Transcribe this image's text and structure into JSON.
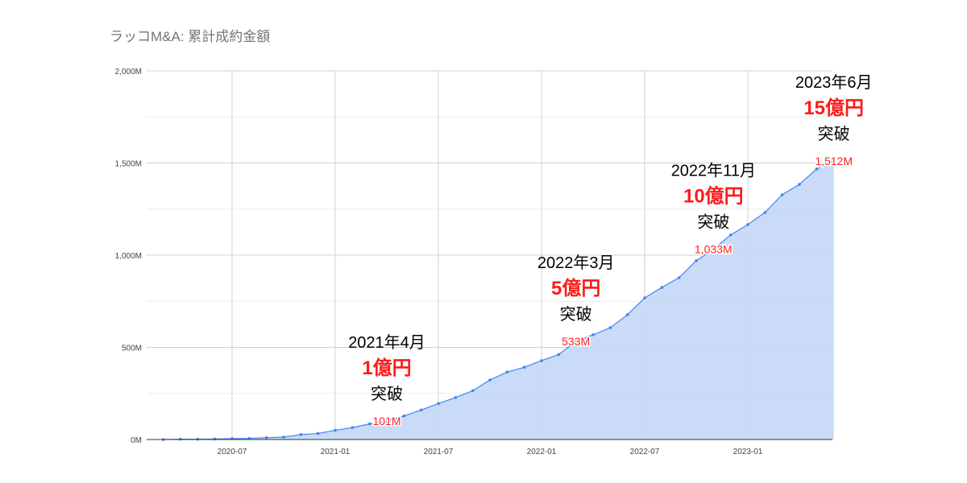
{
  "chart_data": {
    "type": "area",
    "title": "ラッコM&A: 累計成約金額",
    "xlabel": "",
    "ylabel": "",
    "ylim": [
      0,
      2000
    ],
    "y_unit": "M",
    "y_ticks": [
      "0M",
      "500M",
      "1,000M",
      "1,500M",
      "2,000M"
    ],
    "y_tick_values": [
      0,
      500,
      1000,
      1500,
      2000
    ],
    "x_ticks": [
      "2020-07",
      "2021-01",
      "2021-07",
      "2022-01",
      "2022-07",
      "2023-01"
    ],
    "grid": true,
    "legend": "none",
    "colors": {
      "line": "#4285f4",
      "fill": "#c6d9f7",
      "label": "#ff2020",
      "amount": "#ff1a1a"
    },
    "x": [
      "2020-03",
      "2020-04",
      "2020-05",
      "2020-06",
      "2020-07",
      "2020-08",
      "2020-09",
      "2020-10",
      "2020-11",
      "2020-12",
      "2021-01",
      "2021-02",
      "2021-03",
      "2021-04",
      "2021-05",
      "2021-06",
      "2021-07",
      "2021-08",
      "2021-09",
      "2021-10",
      "2021-11",
      "2021-12",
      "2022-01",
      "2022-02",
      "2022-03",
      "2022-04",
      "2022-05",
      "2022-06",
      "2022-07",
      "2022-08",
      "2022-09",
      "2022-10",
      "2022-11",
      "2022-12",
      "2023-01",
      "2023-02",
      "2023-03",
      "2023-04",
      "2023-05",
      "2023-06"
    ],
    "values": [
      0,
      2,
      2,
      3,
      5,
      6,
      10,
      13,
      27,
      33,
      50,
      65,
      85,
      101,
      128,
      160,
      195,
      228,
      265,
      323,
      366,
      392,
      428,
      461,
      533,
      568,
      607,
      677,
      768,
      825,
      878,
      970,
      1033,
      1110,
      1166,
      1232,
      1328,
      1384,
      1467,
      1512
    ],
    "annotations": [
      {
        "x": "2021-04",
        "label": "101M",
        "date": "2021年4月",
        "amount": "1億円",
        "sub": "突破"
      },
      {
        "x": "2022-03",
        "label": "533M",
        "date": "2022年3月",
        "amount": "5億円",
        "sub": "突破"
      },
      {
        "x": "2022-11",
        "label": "1,033M",
        "date": "2022年11月",
        "amount": "10億円",
        "sub": "突破"
      },
      {
        "x": "2023-06",
        "label": "1,512M",
        "date": "2023年6月",
        "amount": "15億円",
        "sub": "突破"
      }
    ]
  }
}
